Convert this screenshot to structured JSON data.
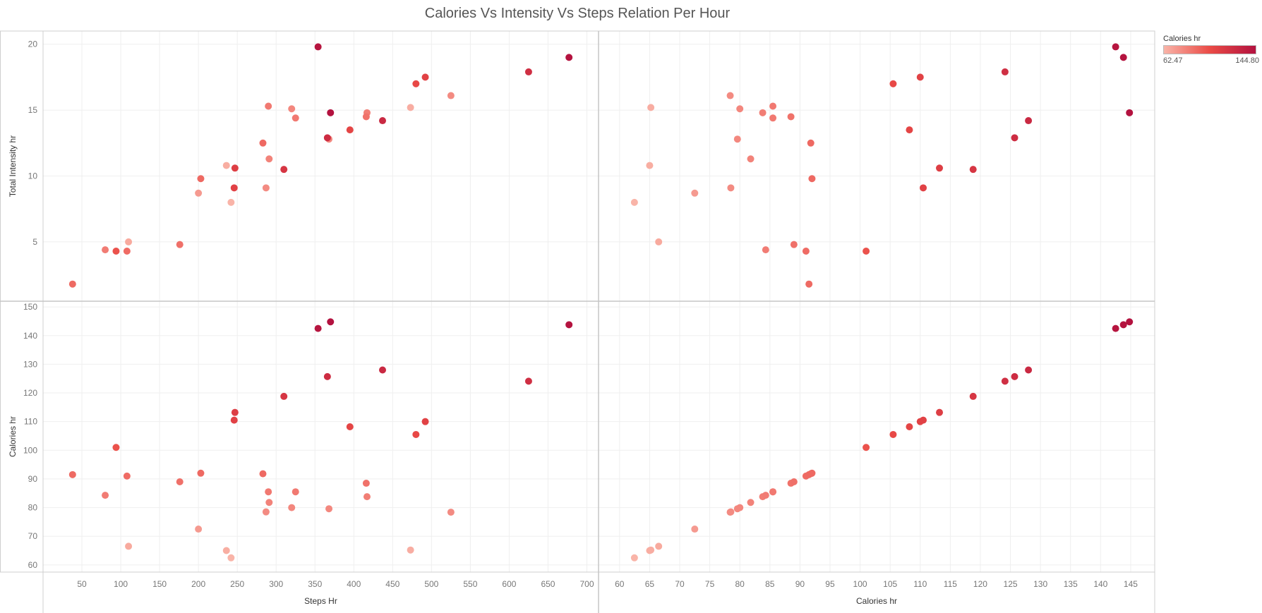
{
  "chart_data": {
    "type": "scatter",
    "title": "Calories Vs Intensity Vs Steps Relation Per Hour",
    "legend": {
      "title": "Calories hr",
      "min_label": "62.47",
      "max_label": "144.80",
      "min": 62.47,
      "max": 144.8,
      "placement": "top-right",
      "color_low": "#f9b4a8",
      "color_mid": "#ea4b46",
      "color_high": "#b3123f"
    },
    "grid": true,
    "axes": {
      "x_steps": {
        "label": "Steps Hr",
        "range": [
          0,
          715
        ],
        "ticks": [
          50,
          100,
          150,
          200,
          250,
          300,
          350,
          400,
          450,
          500,
          550,
          600,
          650,
          700
        ]
      },
      "x_calories": {
        "label": "Calories hr",
        "range": [
          56.5,
          149
        ],
        "ticks": [
          60,
          65,
          70,
          75,
          80,
          85,
          90,
          95,
          100,
          105,
          110,
          115,
          120,
          125,
          130,
          135,
          140,
          145
        ]
      },
      "y_intensity": {
        "label": "Total Intensity hr",
        "range": [
          0.5,
          21
        ],
        "ticks": [
          5,
          10,
          15,
          20
        ]
      },
      "y_calories": {
        "label": "Calories hr",
        "range": [
          57.5,
          152
        ],
        "ticks": [
          60,
          70,
          80,
          90,
          100,
          110,
          120,
          130,
          140,
          150
        ]
      }
    },
    "points": [
      {
        "steps": 38,
        "calories": 91.5,
        "intensity": 1.8
      },
      {
        "steps": 80,
        "calories": 84.3,
        "intensity": 4.4
      },
      {
        "steps": 94,
        "calories": 101.0,
        "intensity": 4.3
      },
      {
        "steps": 108,
        "calories": 91.0,
        "intensity": 4.3
      },
      {
        "steps": 110,
        "calories": 66.5,
        "intensity": 5.0
      },
      {
        "steps": 176,
        "calories": 89.0,
        "intensity": 4.8
      },
      {
        "steps": 200,
        "calories": 72.5,
        "intensity": 8.7
      },
      {
        "steps": 203,
        "calories": 92.0,
        "intensity": 9.8
      },
      {
        "steps": 236,
        "calories": 65.0,
        "intensity": 10.8
      },
      {
        "steps": 242,
        "calories": 62.47,
        "intensity": 8.0
      },
      {
        "steps": 246,
        "calories": 110.5,
        "intensity": 9.1
      },
      {
        "steps": 247,
        "calories": 113.2,
        "intensity": 10.6
      },
      {
        "steps": 283,
        "calories": 91.8,
        "intensity": 12.5
      },
      {
        "steps": 287,
        "calories": 78.5,
        "intensity": 9.1
      },
      {
        "steps": 290,
        "calories": 85.5,
        "intensity": 15.3
      },
      {
        "steps": 291,
        "calories": 81.8,
        "intensity": 11.3
      },
      {
        "steps": 310,
        "calories": 118.8,
        "intensity": 10.5
      },
      {
        "steps": 320,
        "calories": 80.0,
        "intensity": 15.1
      },
      {
        "steps": 325,
        "calories": 85.5,
        "intensity": 14.4
      },
      {
        "steps": 354,
        "calories": 142.5,
        "intensity": 19.8
      },
      {
        "steps": 366,
        "calories": 125.7,
        "intensity": 12.9
      },
      {
        "steps": 368,
        "calories": 79.6,
        "intensity": 12.8
      },
      {
        "steps": 370,
        "calories": 144.8,
        "intensity": 14.8
      },
      {
        "steps": 395,
        "calories": 108.2,
        "intensity": 13.5
      },
      {
        "steps": 416,
        "calories": 88.5,
        "intensity": 14.5
      },
      {
        "steps": 417,
        "calories": 83.8,
        "intensity": 14.8
      },
      {
        "steps": 437,
        "calories": 128.0,
        "intensity": 14.2
      },
      {
        "steps": 473,
        "calories": 65.2,
        "intensity": 15.2
      },
      {
        "steps": 480,
        "calories": 105.5,
        "intensity": 17.0
      },
      {
        "steps": 492,
        "calories": 110.0,
        "intensity": 17.5
      },
      {
        "steps": 525,
        "calories": 78.4,
        "intensity": 16.1
      },
      {
        "steps": 625,
        "calories": 124.1,
        "intensity": 17.9
      },
      {
        "steps": 677,
        "calories": 143.8,
        "intensity": 19.0
      }
    ]
  }
}
